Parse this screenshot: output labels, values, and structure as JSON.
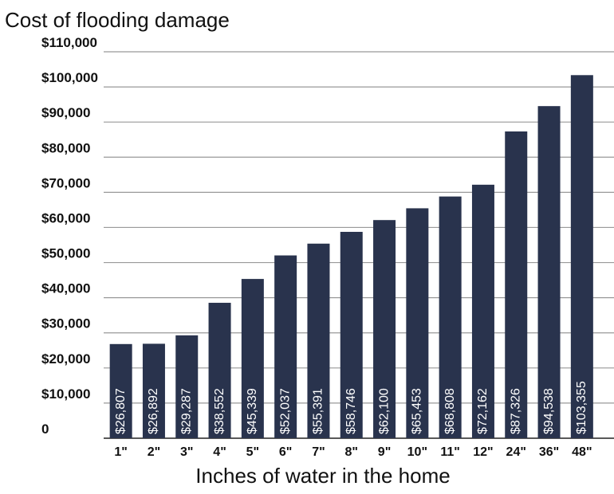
{
  "chart_data": {
    "type": "bar",
    "title": "Cost of flooding damage",
    "x_label": "Inches of water in the home",
    "categories": [
      "1\"",
      "2\"",
      "3\"",
      "4\"",
      "5\"",
      "6\"",
      "7\"",
      "8\"",
      "9\"",
      "10\"",
      "11\"",
      "12\"",
      "24\"",
      "36\"",
      "48\""
    ],
    "values": [
      26807,
      26892,
      29287,
      38552,
      45339,
      52037,
      55391,
      58746,
      62100,
      65453,
      68808,
      72162,
      87326,
      94538,
      103355
    ],
    "value_labels": [
      "$26,807",
      "$26,892",
      "$29,287",
      "$38,552",
      "$45,339",
      "$52,037",
      "$55,391",
      "$58,746",
      "$62,100",
      "$65,453",
      "$68,808",
      "$72,162",
      "$87,326",
      "$94,538",
      "$103,355"
    ],
    "color": "#29334d",
    "ylim": [
      0,
      110000
    ],
    "yticks": [
      0,
      {
        "value": 10000,
        "label": "$10,000"
      },
      {
        "value": 20000,
        "label": "$20,000"
      },
      {
        "value": 30000,
        "label": "$30,000"
      },
      {
        "value": 40000,
        "label": "$40,000"
      },
      {
        "value": 50000,
        "label": "$50,000"
      },
      {
        "value": 60000,
        "label": "$60,000"
      },
      {
        "value": 70000,
        "label": "$70,000"
      },
      {
        "value": 80000,
        "label": "$80,000"
      },
      {
        "value": 90000,
        "label": "$90,000"
      },
      {
        "value": 100000,
        "label": "$100,000"
      },
      {
        "value": 110000,
        "label": "$110,000"
      }
    ],
    "grid": true
  }
}
